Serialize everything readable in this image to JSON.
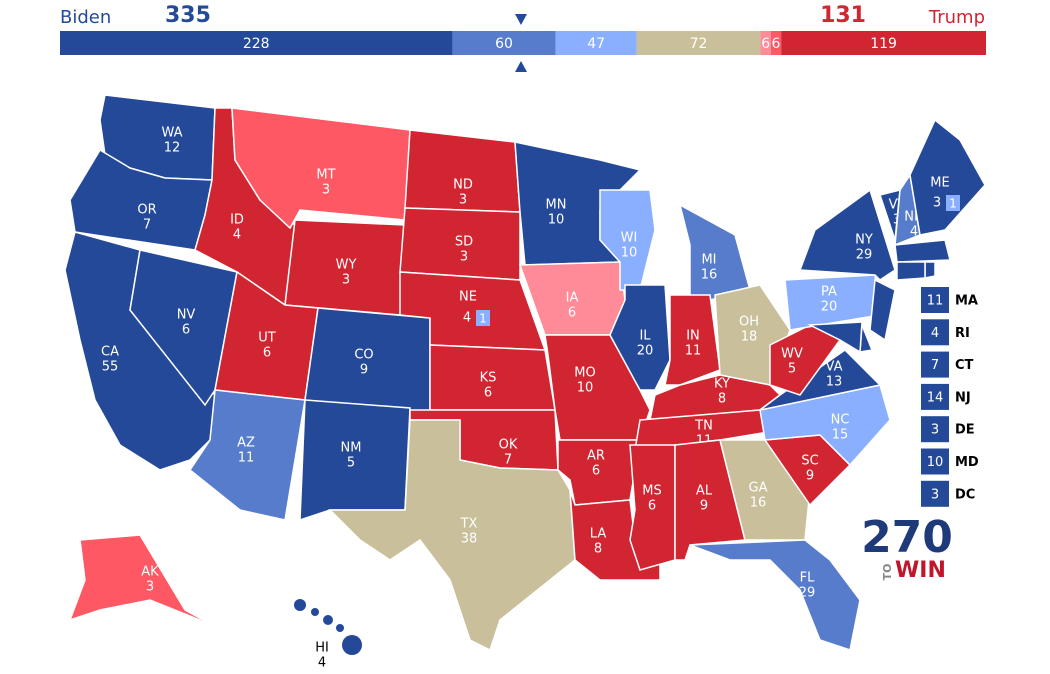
{
  "header": {
    "left_name": "Biden",
    "left_total": 335,
    "right_total": 131,
    "right_name": "Trump"
  },
  "bar": [
    {
      "value": 228,
      "color": "#244999"
    },
    {
      "value": 60,
      "color": "#577ccc"
    },
    {
      "value": 47,
      "color": "#8aafff"
    },
    {
      "value": 72,
      "color": "#c9c09b"
    },
    {
      "value": 6,
      "color": "#ff8b98"
    },
    {
      "value": 6,
      "color": "#ff5865"
    },
    {
      "value": 119,
      "color": "#d22532"
    }
  ],
  "states": [
    {
      "abbr": "WA",
      "ev": 12,
      "color": "#244999"
    },
    {
      "abbr": "OR",
      "ev": 7,
      "color": "#244999"
    },
    {
      "abbr": "CA",
      "ev": 55,
      "color": "#244999"
    },
    {
      "abbr": "NV",
      "ev": 6,
      "color": "#244999"
    },
    {
      "abbr": "ID",
      "ev": 4,
      "color": "#d22532"
    },
    {
      "abbr": "MT",
      "ev": 3,
      "color": "#ff5865"
    },
    {
      "abbr": "WY",
      "ev": 3,
      "color": "#d22532"
    },
    {
      "abbr": "UT",
      "ev": 6,
      "color": "#d22532"
    },
    {
      "abbr": "CO",
      "ev": 9,
      "color": "#244999"
    },
    {
      "abbr": "AZ",
      "ev": 11,
      "color": "#577ccc"
    },
    {
      "abbr": "NM",
      "ev": 5,
      "color": "#244999"
    },
    {
      "abbr": "ND",
      "ev": 3,
      "color": "#d22532"
    },
    {
      "abbr": "SD",
      "ev": 3,
      "color": "#d22532"
    },
    {
      "abbr": "NE",
      "ev": 4,
      "color": "#d22532",
      "district_ev": 1,
      "district_color": "#8aafff"
    },
    {
      "abbr": "KS",
      "ev": 6,
      "color": "#d22532"
    },
    {
      "abbr": "OK",
      "ev": 7,
      "color": "#d22532"
    },
    {
      "abbr": "TX",
      "ev": 38,
      "color": "#c9c09b"
    },
    {
      "abbr": "MN",
      "ev": 10,
      "color": "#244999"
    },
    {
      "abbr": "IA",
      "ev": 6,
      "color": "#ff8b98"
    },
    {
      "abbr": "MO",
      "ev": 10,
      "color": "#d22532"
    },
    {
      "abbr": "AR",
      "ev": 6,
      "color": "#d22532"
    },
    {
      "abbr": "LA",
      "ev": 8,
      "color": "#d22532"
    },
    {
      "abbr": "WI",
      "ev": 10,
      "color": "#8aafff"
    },
    {
      "abbr": "IL",
      "ev": 20,
      "color": "#244999"
    },
    {
      "abbr": "MI",
      "ev": 16,
      "color": "#577ccc"
    },
    {
      "abbr": "IN",
      "ev": 11,
      "color": "#d22532"
    },
    {
      "abbr": "OH",
      "ev": 18,
      "color": "#c9c09b"
    },
    {
      "abbr": "KY",
      "ev": 8,
      "color": "#d22532"
    },
    {
      "abbr": "TN",
      "ev": 11,
      "color": "#d22532"
    },
    {
      "abbr": "MS",
      "ev": 6,
      "color": "#d22532"
    },
    {
      "abbr": "AL",
      "ev": 9,
      "color": "#d22532"
    },
    {
      "abbr": "GA",
      "ev": 16,
      "color": "#c9c09b"
    },
    {
      "abbr": "FL",
      "ev": 29,
      "color": "#577ccc"
    },
    {
      "abbr": "SC",
      "ev": 9,
      "color": "#d22532"
    },
    {
      "abbr": "NC",
      "ev": 15,
      "color": "#8aafff"
    },
    {
      "abbr": "VA",
      "ev": 13,
      "color": "#244999"
    },
    {
      "abbr": "WV",
      "ev": 5,
      "color": "#d22532"
    },
    {
      "abbr": "PA",
      "ev": 20,
      "color": "#8aafff"
    },
    {
      "abbr": "NY",
      "ev": 29,
      "color": "#244999"
    },
    {
      "abbr": "VT",
      "ev": 3,
      "color": "#244999"
    },
    {
      "abbr": "NH",
      "ev": 4,
      "color": "#577ccc"
    },
    {
      "abbr": "ME",
      "ev": 3,
      "color": "#244999",
      "district_ev": 1,
      "district_color": "#8aafff"
    },
    {
      "abbr": "MA",
      "ev": 11,
      "color": "#244999"
    },
    {
      "abbr": "RI",
      "ev": 4,
      "color": "#244999"
    },
    {
      "abbr": "CT",
      "ev": 7,
      "color": "#244999"
    },
    {
      "abbr": "NJ",
      "ev": 14,
      "color": "#244999"
    },
    {
      "abbr": "DE",
      "ev": 3,
      "color": "#244999"
    },
    {
      "abbr": "MD",
      "ev": 10,
      "color": "#244999"
    },
    {
      "abbr": "DC",
      "ev": 3,
      "color": "#244999"
    },
    {
      "abbr": "AK",
      "ev": 3,
      "color": "#ff5865"
    },
    {
      "abbr": "HI",
      "ev": 4,
      "color": "#244999"
    }
  ],
  "logo": {
    "number": "270",
    "small": "TO",
    "word": "WIN"
  }
}
